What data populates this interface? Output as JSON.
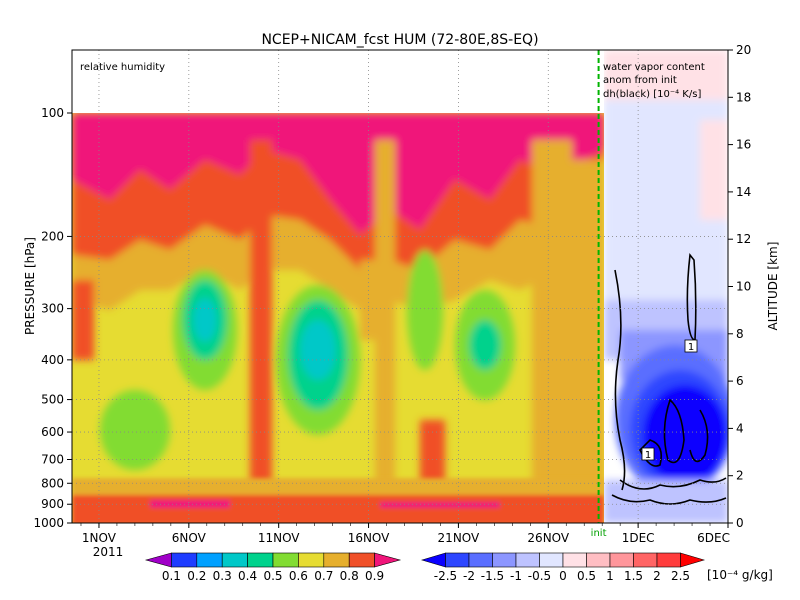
{
  "chart_data": {
    "type": "heatmap",
    "title": "NCEP+NICAM_fcst HUM (72-80E,8S-EQ)",
    "left_panel_label": "relative humidity",
    "right_panel_label_lines": [
      "water vapor content",
      "anom from init",
      "dh(black) [10⁻⁴ K/s]"
    ],
    "init_label": "init",
    "y_left_label": "PRESSURE [hPa]",
    "y_right_label": "ALTITUDE [km]",
    "y_left_ticks": [
      {
        "value": 100,
        "label": "100"
      },
      {
        "value": 200,
        "label": "200"
      },
      {
        "value": 300,
        "label": "300"
      },
      {
        "value": 400,
        "label": "400"
      },
      {
        "value": 500,
        "label": "500"
      },
      {
        "value": 600,
        "label": "600"
      },
      {
        "value": 700,
        "label": "700"
      },
      {
        "value": 800,
        "label": "800"
      },
      {
        "value": 900,
        "label": "900"
      },
      {
        "value": 1000,
        "label": "1000"
      }
    ],
    "y_right_ticks": [
      {
        "value": 0,
        "label": "0"
      },
      {
        "value": 2,
        "label": "2"
      },
      {
        "value": 4,
        "label": "4"
      },
      {
        "value": 6,
        "label": "6"
      },
      {
        "value": 8,
        "label": "8"
      },
      {
        "value": 10,
        "label": "10"
      },
      {
        "value": 12,
        "label": "12"
      },
      {
        "value": 14,
        "label": "14"
      },
      {
        "value": 16,
        "label": "16"
      },
      {
        "value": 18,
        "label": "18"
      },
      {
        "value": 20,
        "label": "20"
      }
    ],
    "x_ticks": [
      {
        "day": 1,
        "label": "1NOV"
      },
      {
        "day": 6,
        "label": "6NOV"
      },
      {
        "day": 11,
        "label": "11NOV"
      },
      {
        "day": 16,
        "label": "16NOV"
      },
      {
        "day": 21,
        "label": "21NOV"
      },
      {
        "day": 26,
        "label": "26NOV"
      },
      {
        "day": 31,
        "label": "1DEC"
      },
      {
        "day": 36,
        "label": "6DEC"
      }
    ],
    "x_year_label": "2011",
    "init_day": 28.8,
    "x_range_days": [
      -0.5,
      36
    ],
    "rh_levels": [
      0.1,
      0.2,
      0.3,
      0.4,
      0.5,
      0.6,
      0.7,
      0.8,
      0.9
    ],
    "rh_colors": [
      "#a000c8",
      "#1e3cff",
      "#00a0ff",
      "#00c8c8",
      "#00d28c",
      "#82dc32",
      "#e6dc32",
      "#e6af2d",
      "#f05028",
      "#f0157a"
    ],
    "anom_levels": [
      "-2.5",
      "-2",
      "-1.5",
      "-1",
      "-0.5",
      "0",
      "0.5",
      "1",
      "1.5",
      "2",
      "2.5"
    ],
    "anom_colors": [
      "#0a00ff",
      "#2d46ff",
      "#5a6eff",
      "#8c96ff",
      "#bec3ff",
      "#e1e6ff",
      "#ffe1e6",
      "#ffbec3",
      "#ff969b",
      "#ff6464",
      "#ff3c3c",
      "#ff0000"
    ],
    "anom_unit": "[10⁻⁴ g/kg]",
    "contour_label": "1"
  }
}
